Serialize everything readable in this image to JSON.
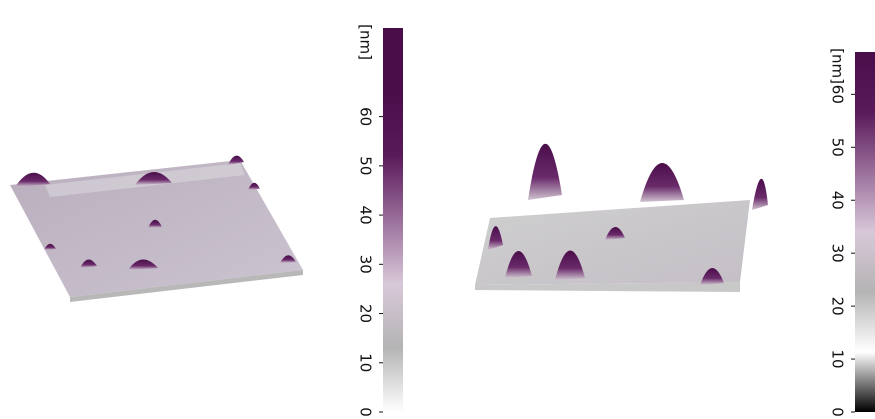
{
  "chart_data": [
    {
      "type": "surface3d",
      "colorbar": {
        "label": "[nm]",
        "lim": [
          0,
          78
        ],
        "ticks": [
          0,
          10,
          20,
          30,
          40,
          50,
          60
        ],
        "colors": [
          "#ffffff",
          "#b4b4b4",
          "#d8c8d8",
          "#9a6f9a",
          "#5a1a5a",
          "#4a0d4a",
          "#4a0d4a"
        ]
      }
    },
    {
      "type": "surface3d",
      "colorbar": {
        "label": "[nm]",
        "lim": [
          0,
          68
        ],
        "ticks": [
          0,
          10,
          20,
          30,
          40,
          50,
          60
        ],
        "colors": [
          "#000000",
          "#ffffff",
          "#b4b4b4",
          "#d8c8d8",
          "#9a6f9a",
          "#5a1a5a",
          "#4a0d4a"
        ]
      }
    }
  ]
}
